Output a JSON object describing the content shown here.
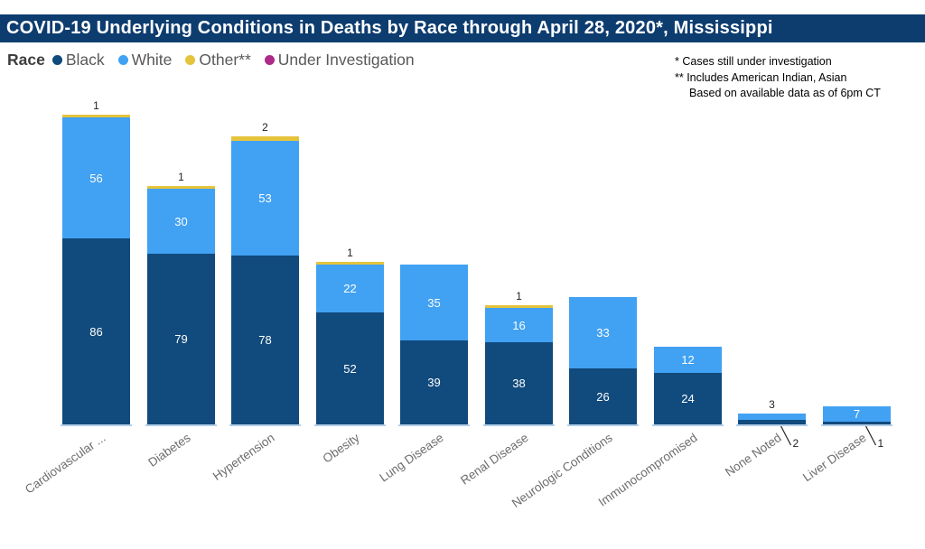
{
  "title": "COVID-19 Underlying Conditions in Deaths by Race through April 28, 2020*, Mississippi",
  "legend": {
    "label": "Race",
    "items": [
      {
        "name": "Black",
        "color": "#114a7c"
      },
      {
        "name": "White",
        "color": "#41a1f3"
      },
      {
        "name": "Other**",
        "color": "#e5c43c"
      },
      {
        "name": "Under Investigation",
        "color": "#ad2a8a"
      }
    ]
  },
  "notes": [
    "* Cases still under investigation",
    "** Includes American Indian, Asian",
    "Based on available data as of 6pm CT"
  ],
  "colors": {
    "title_bar_bg": "#0d3c6f",
    "title_text": "#ffffff",
    "baseline_strip": "#b3cfe9",
    "callout_line": "#222222"
  },
  "chart_data": {
    "type": "bar",
    "stacked": true,
    "orientation": "vertical",
    "title": "COVID-19 Underlying Conditions in Deaths by Race through April 28, 2020*, Mississippi",
    "categories": [
      "Cardiovascular ...",
      "Diabetes",
      "Hypertension",
      "Obesity",
      "Lung Disease",
      "Renal Disease",
      "Neurologic Conditions",
      "Immunocompromised",
      "None Noted",
      "Liver Disease"
    ],
    "series": [
      {
        "name": "Black",
        "color": "#114a7c",
        "values": [
          86,
          79,
          78,
          52,
          39,
          38,
          26,
          24,
          2,
          1
        ]
      },
      {
        "name": "White",
        "color": "#41a1f3",
        "values": [
          56,
          30,
          53,
          22,
          35,
          16,
          33,
          12,
          3,
          7
        ]
      },
      {
        "name": "Other**",
        "color": "#e5c43c",
        "values": [
          1,
          1,
          2,
          1,
          0,
          1,
          0,
          0,
          0,
          0
        ]
      },
      {
        "name": "Under Investigation",
        "color": "#ad2a8a",
        "values": [
          0,
          0,
          0,
          0,
          0,
          0,
          0,
          0,
          0,
          0
        ]
      }
    ],
    "totals": [
      143,
      110,
      133,
      75,
      74,
      55,
      59,
      36,
      5,
      8
    ],
    "callout_labels": [
      {
        "category": "None Noted",
        "series": "Black",
        "value": 2
      },
      {
        "category": "Liver Disease",
        "series": "Black",
        "value": 1
      }
    ],
    "above_bar_labels": [
      {
        "category": "Cardiovascular ...",
        "series": "Other**",
        "value": 1
      },
      {
        "category": "Diabetes",
        "series": "Other**",
        "value": 1
      },
      {
        "category": "Hypertension",
        "series": "Other**",
        "value": 2
      },
      {
        "category": "Obesity",
        "series": "Other**",
        "value": 1
      },
      {
        "category": "Renal Disease",
        "series": "Other**",
        "value": 1
      },
      {
        "category": "None Noted",
        "series": "White",
        "value": 3
      }
    ],
    "xlabel": "",
    "ylabel": "",
    "y_axis_visible": false,
    "gridlines": false,
    "legend_position": "top-left",
    "x_label_rotation": -35
  }
}
